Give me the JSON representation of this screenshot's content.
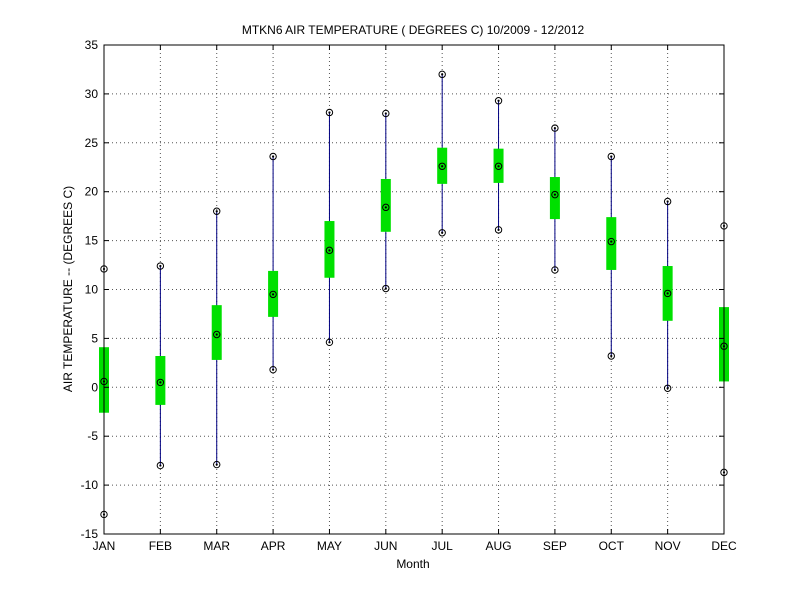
{
  "chart_data": {
    "type": "boxplot",
    "title": "MTKN6  AIR TEMPERATURE ( DEGREES C) 10/2009 - 12/2012",
    "xlabel": "Month",
    "ylabel": "AIR TEMPERATURE -- (DEGREES C)",
    "categories": [
      "JAN",
      "FEB",
      "MAR",
      "APR",
      "MAY",
      "JUN",
      "JUL",
      "AUG",
      "SEP",
      "OCT",
      "NOV",
      "DEC"
    ],
    "ylim": [
      -15,
      35
    ],
    "yticks": [
      -15,
      -10,
      -5,
      0,
      5,
      10,
      15,
      20,
      25,
      30,
      35
    ],
    "grid": true,
    "min": [
      -13.0,
      -8.0,
      -7.9,
      1.8,
      4.6,
      10.1,
      15.8,
      16.1,
      12.0,
      3.2,
      -0.1,
      -8.7
    ],
    "q1": [
      -2.6,
      -1.8,
      2.8,
      7.2,
      11.2,
      15.9,
      20.8,
      20.9,
      17.2,
      12.0,
      6.8,
      0.6
    ],
    "median": [
      0.6,
      0.5,
      5.4,
      9.5,
      14.0,
      18.4,
      22.6,
      22.6,
      19.7,
      14.9,
      9.6,
      4.2
    ],
    "q3": [
      4.1,
      3.2,
      8.4,
      11.9,
      17.0,
      21.3,
      24.5,
      24.4,
      21.5,
      17.4,
      12.4,
      8.2
    ],
    "max": [
      12.1,
      12.4,
      18.0,
      23.6,
      28.1,
      28.0,
      32.0,
      29.3,
      26.5,
      23.6,
      19.0,
      16.5
    ],
    "colors": {
      "whisker": "#000080",
      "box": "#00e000",
      "marker": "#000000",
      "grid": "#555555"
    }
  }
}
